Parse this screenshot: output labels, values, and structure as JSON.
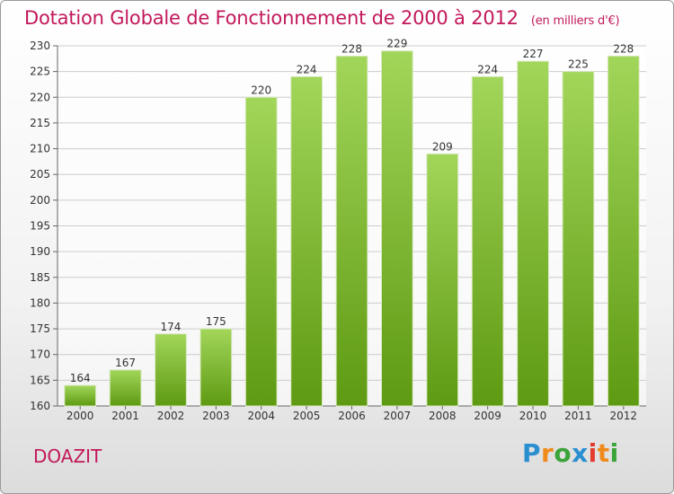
{
  "title": "Dotation Globale de Fonctionnement de 2000 à 2012",
  "unit": "(en milliers d'€)",
  "commune": "DOAZIT",
  "logo": {
    "brand": "Proxiti",
    "letters": [
      "P",
      "r",
      "o",
      "x",
      "i",
      "t",
      "i"
    ]
  },
  "colors": {
    "title": "#c2185b",
    "bar_light": "#a2d65a",
    "bar_dark": "#5e9a12",
    "grid": "#cccccc"
  },
  "chart_data": {
    "type": "bar",
    "categories": [
      "2000",
      "2001",
      "2002",
      "2003",
      "2004",
      "2005",
      "2006",
      "2007",
      "2008",
      "2009",
      "2010",
      "2011",
      "2012"
    ],
    "values": [
      164,
      167,
      174,
      175,
      220,
      224,
      228,
      229,
      209,
      224,
      227,
      225,
      228
    ],
    "title": "Dotation Globale de Fonctionnement de 2000 à 2012",
    "xlabel": "",
    "ylabel": "",
    "ylim": [
      160,
      230
    ],
    "yticks": [
      160,
      165,
      170,
      175,
      180,
      185,
      190,
      195,
      200,
      205,
      210,
      215,
      220,
      225,
      230
    ],
    "grid": true,
    "data_labels": true
  }
}
